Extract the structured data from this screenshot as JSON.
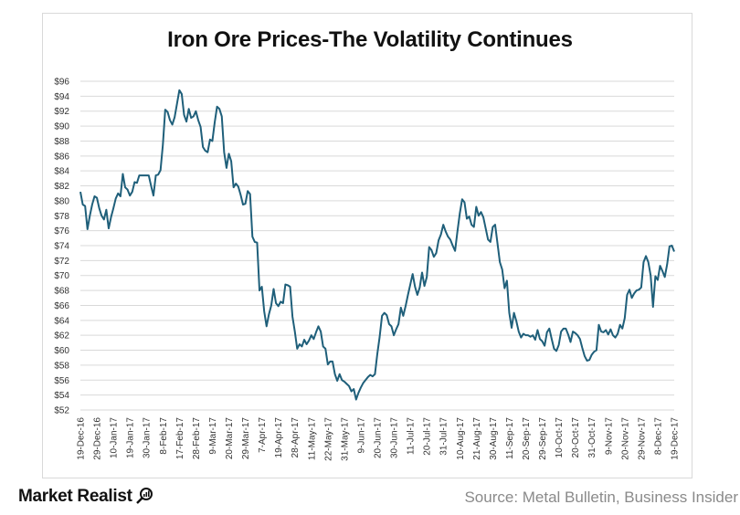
{
  "brand": {
    "name": "Market Realist"
  },
  "source": "Source: Metal Bulletin, Business Insider",
  "chart_data": {
    "type": "line",
    "title": "Iron Ore Prices-The Volatility Continues",
    "xlabel": "",
    "ylabel": "",
    "ylim": [
      52,
      96
    ],
    "yticks": [
      "$52",
      "$54",
      "$56",
      "$58",
      "$60",
      "$62",
      "$64",
      "$66",
      "$68",
      "$70",
      "$72",
      "$74",
      "$76",
      "$78",
      "$80",
      "$82",
      "$84",
      "$86",
      "$88",
      "$90",
      "$92",
      "$94",
      "$96"
    ],
    "ytick_values": [
      52,
      54,
      56,
      58,
      60,
      62,
      64,
      66,
      68,
      70,
      72,
      74,
      76,
      78,
      80,
      82,
      84,
      86,
      88,
      90,
      92,
      94,
      96
    ],
    "xticks": [
      "19-Dec-16",
      "29-Dec-16",
      "10-Jan-17",
      "19-Jan-17",
      "30-Jan-17",
      "8-Feb-17",
      "17-Feb-17",
      "28-Feb-17",
      "9-Mar-17",
      "20-Mar-17",
      "29-Mar-17",
      "7-Apr-17",
      "19-Apr-17",
      "28-Apr-17",
      "11-May-17",
      "22-May-17",
      "31-May-17",
      "9-Jun-17",
      "20-Jun-17",
      "30-Jun-17",
      "11-Jul-17",
      "20-Jul-17",
      "31-Jul-17",
      "10-Aug-17",
      "21-Aug-17",
      "30-Aug-17",
      "11-Sep-17",
      "20-Sep-17",
      "29-Sep-17",
      "10-Oct-17",
      "20-Oct-17",
      "31-Oct-17",
      "9-Nov-17",
      "20-Nov-17",
      "29-Nov-17",
      "8-Dec-17",
      "19-Dec-17"
    ],
    "grid": true,
    "line_color": "#1f5f7a",
    "series": [
      {
        "values": [
          81.2,
          79.5,
          79.3,
          76.2,
          78.0,
          79.5,
          80.6,
          80.4,
          79.0,
          78.0,
          77.5,
          78.8,
          76.3,
          77.8,
          79.0,
          80.3,
          81.0,
          80.6,
          83.6,
          81.8,
          81.5,
          80.7,
          81.2,
          82.5,
          82.4,
          83.4,
          83.4,
          83.4,
          83.4,
          83.4,
          82.0,
          80.7,
          83.4,
          83.5,
          84.1,
          87.5,
          92.2,
          91.9,
          90.8,
          90.2,
          91.2,
          93.0,
          94.8,
          94.3,
          91.5,
          90.6,
          92.3,
          91.1,
          91.3,
          92.0,
          90.8,
          89.9,
          87.2,
          86.7,
          86.5,
          88.2,
          88.0,
          90.5,
          92.6,
          92.3,
          91.3,
          86.5,
          84.4,
          86.3,
          85.3,
          81.8,
          82.3,
          81.9,
          80.8,
          79.5,
          79.6,
          81.3,
          80.9,
          75.2,
          74.5,
          74.4,
          68.0,
          68.5,
          65.2,
          63.2,
          64.8,
          66.0,
          68.2,
          66.3,
          65.9,
          66.5,
          66.3,
          68.8,
          68.7,
          68.5,
          64.5,
          62.5,
          60.2,
          60.8,
          60.5,
          61.4,
          60.8,
          61.3,
          62.0,
          61.5,
          62.4,
          63.2,
          62.5,
          60.5,
          60.2,
          58.1,
          58.5,
          58.5,
          56.8,
          55.9,
          56.8,
          56.0,
          55.8,
          55.5,
          55.2,
          54.5,
          54.8,
          53.4,
          54.3,
          55.0,
          55.6,
          56.0,
          56.4,
          56.7,
          56.5,
          56.8,
          59.5,
          61.8,
          64.6,
          65.0,
          64.7,
          63.5,
          63.2,
          62.0,
          62.8,
          63.5,
          65.7,
          64.6,
          65.9,
          67.4,
          68.8,
          70.2,
          68.5,
          67.4,
          68.4,
          70.4,
          68.6,
          69.8,
          73.8,
          73.4,
          72.5,
          73.0,
          74.7,
          75.5,
          76.8,
          75.9,
          75.2,
          74.8,
          74.0,
          73.3,
          75.9,
          78.3,
          80.2,
          79.8,
          77.6,
          77.9,
          76.8,
          76.5,
          79.2,
          78.0,
          78.5,
          77.8,
          76.3,
          74.8,
          74.5,
          76.5,
          76.8,
          74.3,
          71.8,
          70.8,
          68.3,
          69.3,
          65.0,
          63.0,
          65.0,
          63.9,
          62.5,
          61.7,
          62.2,
          62.0,
          62.0,
          61.8,
          62.0,
          61.4,
          62.7,
          61.5,
          61.2,
          60.6,
          62.4,
          62.9,
          61.5,
          60.2,
          59.9,
          60.7,
          62.5,
          62.9,
          62.9,
          62.1,
          61.1,
          62.5,
          62.3,
          62.0,
          61.5,
          60.3,
          59.2,
          58.6,
          58.7,
          59.4,
          59.8,
          60.0,
          63.4,
          62.5,
          62.4,
          62.7,
          62.1,
          62.8,
          62.0,
          61.7,
          62.2,
          63.4,
          62.9,
          64.3,
          67.4,
          68.1,
          67.0,
          67.6,
          68.0,
          68.1,
          68.4,
          71.8,
          72.6,
          71.8,
          70.0,
          65.8,
          69.9,
          69.4,
          71.3,
          70.6,
          69.8,
          71.5,
          73.9,
          74.0,
          73.2
        ]
      }
    ]
  }
}
